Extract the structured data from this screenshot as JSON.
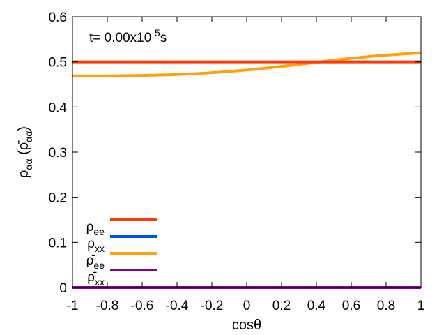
{
  "chart_data": {
    "type": "line",
    "annotation": {
      "prefix": "t=  0.00x10",
      "exponent": "-5",
      "suffix": "s"
    },
    "xlabel": "cosθ",
    "ylabel": {
      "base": "ρ",
      "sub": "αα",
      "bar_open": " (",
      "bar_base": "ρ̄",
      "bar_sub": "αα",
      "bar_close": ")"
    },
    "xlim": [
      -1,
      1
    ],
    "ylim": [
      0,
      0.6
    ],
    "x_ticks": [
      "-1",
      "-0.8",
      "-0.6",
      "-0.4",
      "-0.2",
      "0",
      "0.2",
      "0.4",
      "0.6",
      "0.8",
      "1"
    ],
    "y_ticks": [
      "0",
      "0.1",
      "0.2",
      "0.3",
      "0.4",
      "0.5",
      "0.6"
    ],
    "grid": false,
    "legend_position": "bottom-left",
    "series": [
      {
        "name": "ρee",
        "label_base": "ρ",
        "label_sub": "ee",
        "color": "#ff3a0a",
        "x": [
          -1,
          1
        ],
        "y": [
          0.5,
          0.5
        ]
      },
      {
        "name": "ρxx",
        "label_base": "ρ",
        "label_sub": "xx",
        "color": "#0050f0",
        "x": [
          -1,
          1
        ],
        "y": [
          0.0,
          0.0
        ]
      },
      {
        "name": "ρ̄ee",
        "label_base": "ρ̄",
        "label_sub": "ee",
        "color": "#ffa10a",
        "x": [
          -1.0,
          -0.8,
          -0.6,
          -0.4,
          -0.2,
          0.0,
          0.2,
          0.4,
          0.6,
          0.8,
          1.0
        ],
        "y": [
          0.469,
          0.469,
          0.47,
          0.472,
          0.476,
          0.482,
          0.49,
          0.499,
          0.508,
          0.515,
          0.52
        ]
      },
      {
        "name": "ρ̄xx",
        "label_base": "ρ̄",
        "label_sub": "xx",
        "color": "#8b008b",
        "x": [
          -1,
          1
        ],
        "y": [
          0.0,
          0.0
        ]
      }
    ],
    "line_order": [
      "ρxx",
      "ρ̄ee",
      "ρee",
      "ρ̄xx"
    ]
  }
}
